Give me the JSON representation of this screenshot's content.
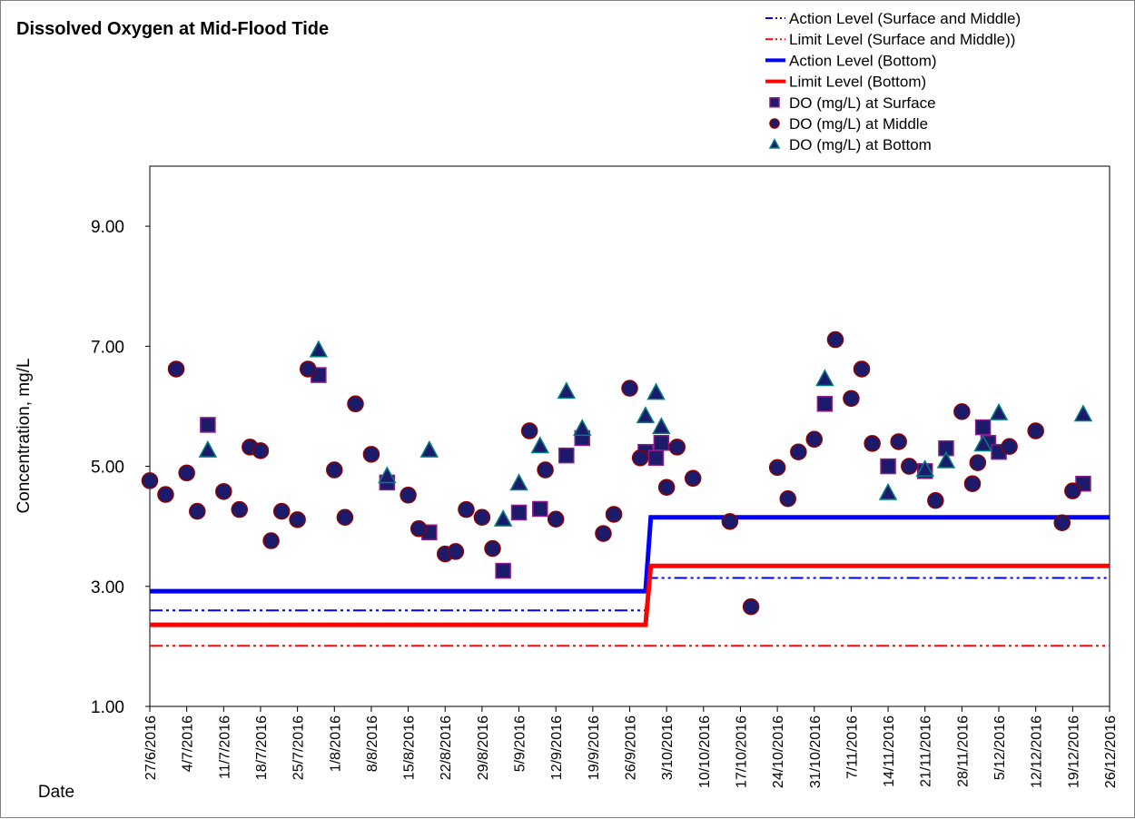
{
  "chart_data": {
    "type": "scatter",
    "title": "Dissolved Oxygen at Mid-Flood Tide",
    "x_label": "Date",
    "y_label": "Concentration, mg/L",
    "legend": "upper right",
    "xlim": [
      "2016-06-27",
      "2016-12-26"
    ],
    "xticks": [
      {
        "value": "2016-06-27",
        "label": "27/6/2016"
      },
      {
        "value": "2016-07-04",
        "label": "4/7/2016"
      },
      {
        "value": "2016-07-11",
        "label": "11/7/2016"
      },
      {
        "value": "2016-07-18",
        "label": "18/7/2016"
      },
      {
        "value": "2016-07-25",
        "label": "25/7/2016"
      },
      {
        "value": "2016-08-01",
        "label": "1/8/2016"
      },
      {
        "value": "2016-08-08",
        "label": "8/8/2016"
      },
      {
        "value": "2016-08-15",
        "label": "15/8/2016"
      },
      {
        "value": "2016-08-22",
        "label": "22/8/2016"
      },
      {
        "value": "2016-08-29",
        "label": "29/8/2016"
      },
      {
        "value": "2016-09-05",
        "label": "5/9/2016"
      },
      {
        "value": "2016-09-12",
        "label": "12/9/2016"
      },
      {
        "value": "2016-09-19",
        "label": "19/9/2016"
      },
      {
        "value": "2016-09-26",
        "label": "26/9/2016"
      },
      {
        "value": "2016-10-03",
        "label": "3/10/2016"
      },
      {
        "value": "2016-10-10",
        "label": "10/10/2016"
      },
      {
        "value": "2016-10-17",
        "label": "17/10/2016"
      },
      {
        "value": "2016-10-24",
        "label": "24/10/2016"
      },
      {
        "value": "2016-10-31",
        "label": "31/10/2016"
      },
      {
        "value": "2016-11-07",
        "label": "7/11/2016"
      },
      {
        "value": "2016-11-14",
        "label": "14/11/2016"
      },
      {
        "value": "2016-11-21",
        "label": "21/11/2016"
      },
      {
        "value": "2016-11-28",
        "label": "28/11/2016"
      },
      {
        "value": "2016-12-05",
        "label": "5/12/2016"
      },
      {
        "value": "2016-12-12",
        "label": "12/12/2016"
      },
      {
        "value": "2016-12-19",
        "label": "19/12/2016"
      },
      {
        "value": "2016-12-26",
        "label": "26/12/2016"
      }
    ],
    "ylim": [
      1,
      10
    ],
    "yticks": [
      {
        "value": 1,
        "label": "1.00"
      },
      {
        "value": 3,
        "label": "3.00"
      },
      {
        "value": 5,
        "label": "5.00"
      },
      {
        "value": 7,
        "label": "7.00"
      },
      {
        "value": 9,
        "label": "9.00"
      }
    ],
    "series": [
      {
        "name": "Action Level (Surface and Middle)",
        "type": "line",
        "style": "dash-dot-dot",
        "color": "#0000ff",
        "x": [
          "2016-06-27",
          "2016-09-29",
          "2016-09-30",
          "2016-12-26"
        ],
        "values": [
          2.6,
          2.6,
          3.14,
          3.14
        ]
      },
      {
        "name": "Limit Level (Surface and Middle))",
        "type": "line",
        "style": "dash-dot-dot",
        "color": "#ff0000",
        "x": [
          "2016-06-27",
          "2016-09-29",
          "2016-09-30",
          "2016-12-26"
        ],
        "values": [
          2.01,
          2.01,
          2.01,
          2.01
        ]
      },
      {
        "name": "Action Level (Bottom)",
        "type": "line",
        "style": "solid",
        "color": "#0000ff",
        "x": [
          "2016-06-27",
          "2016-09-29",
          "2016-09-30",
          "2016-12-26"
        ],
        "values": [
          2.92,
          2.92,
          4.15,
          4.15
        ]
      },
      {
        "name": "Limit Level (Bottom)",
        "type": "line",
        "style": "solid",
        "color": "#ff0000",
        "x": [
          "2016-06-27",
          "2016-09-29",
          "2016-09-30",
          "2016-12-26"
        ],
        "values": [
          2.36,
          2.36,
          3.34,
          3.34
        ]
      },
      {
        "name": "DO (mg/L) at Surface",
        "type": "scatter",
        "marker": "square",
        "color": "#1c1a6b",
        "edgecolor": "#8b1a8b",
        "x": [
          "2016-07-08",
          "2016-07-29",
          "2016-08-11",
          "2016-08-19",
          "2016-09-02",
          "2016-09-05",
          "2016-09-09",
          "2016-09-14",
          "2016-09-17",
          "2016-09-29",
          "2016-10-01",
          "2016-10-02",
          "2016-11-02",
          "2016-11-14",
          "2016-11-21",
          "2016-11-25",
          "2016-12-02",
          "2016-12-03",
          "2016-12-05",
          "2016-12-21"
        ],
        "values": [
          5.69,
          6.52,
          4.73,
          3.9,
          3.26,
          4.23,
          4.29,
          5.18,
          5.47,
          5.24,
          5.14,
          5.39,
          6.04,
          5.0,
          4.92,
          5.3,
          5.65,
          5.39,
          5.24,
          4.71
        ]
      },
      {
        "name": "DO (mg/L) at Middle",
        "type": "scatter",
        "marker": "circle",
        "color": "#1c1a6b",
        "edgecolor": "#8b0000",
        "x": [
          "2016-06-27",
          "2016-06-30",
          "2016-07-02",
          "2016-07-04",
          "2016-07-06",
          "2016-07-11",
          "2016-07-14",
          "2016-07-16",
          "2016-07-18",
          "2016-07-20",
          "2016-07-22",
          "2016-07-25",
          "2016-07-27",
          "2016-08-01",
          "2016-08-03",
          "2016-08-05",
          "2016-08-08",
          "2016-08-15",
          "2016-08-17",
          "2016-08-22",
          "2016-08-24",
          "2016-08-26",
          "2016-08-29",
          "2016-08-31",
          "2016-09-07",
          "2016-09-10",
          "2016-09-12",
          "2016-09-21",
          "2016-09-23",
          "2016-09-26",
          "2016-09-28",
          "2016-10-03",
          "2016-10-05",
          "2016-10-08",
          "2016-10-15",
          "2016-10-19",
          "2016-10-24",
          "2016-10-26",
          "2016-10-28",
          "2016-10-31",
          "2016-11-04",
          "2016-11-07",
          "2016-11-09",
          "2016-11-11",
          "2016-11-16",
          "2016-11-18",
          "2016-11-23",
          "2016-11-28",
          "2016-11-30",
          "2016-12-01",
          "2016-12-07",
          "2016-12-12",
          "2016-12-17",
          "2016-12-19"
        ],
        "values": [
          4.76,
          4.53,
          6.62,
          4.89,
          4.25,
          4.58,
          4.28,
          5.32,
          5.26,
          3.76,
          4.25,
          4.11,
          6.62,
          4.94,
          4.15,
          6.04,
          5.2,
          4.52,
          3.96,
          3.54,
          3.58,
          4.28,
          4.15,
          3.63,
          5.59,
          4.94,
          4.12,
          3.88,
          4.2,
          6.3,
          5.14,
          4.65,
          5.32,
          4.8,
          4.08,
          2.66,
          4.98,
          4.46,
          5.24,
          5.45,
          7.11,
          6.13,
          6.62,
          5.38,
          5.41,
          5.0,
          4.43,
          5.91,
          4.71,
          5.06,
          5.33,
          5.59,
          4.06,
          4.59
        ]
      },
      {
        "name": "DO (mg/L) at Bottom",
        "type": "scatter",
        "marker": "triangle",
        "color": "#1c1a6b",
        "edgecolor": "#008080",
        "x": [
          "2016-07-08",
          "2016-07-29",
          "2016-08-11",
          "2016-08-19",
          "2016-09-02",
          "2016-09-05",
          "2016-09-09",
          "2016-09-14",
          "2016-09-17",
          "2016-09-29",
          "2016-10-01",
          "2016-10-02",
          "2016-11-02",
          "2016-11-14",
          "2016-11-21",
          "2016-11-25",
          "2016-12-02",
          "2016-12-05",
          "2016-12-21"
        ],
        "values": [
          5.26,
          6.93,
          4.83,
          5.26,
          4.11,
          4.71,
          5.33,
          6.24,
          5.62,
          5.83,
          6.22,
          5.65,
          6.45,
          4.55,
          4.94,
          5.08,
          5.36,
          5.88,
          5.86
        ]
      }
    ]
  }
}
